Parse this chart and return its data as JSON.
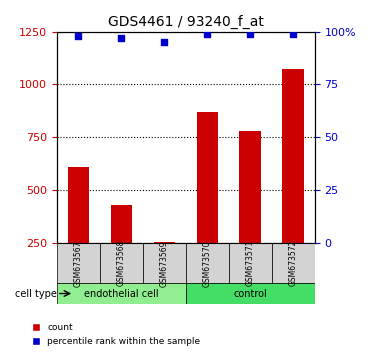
{
  "title": "GDS4461 / 93240_f_at",
  "categories": [
    "GSM673567",
    "GSM673568",
    "GSM673569",
    "GSM673570",
    "GSM673571",
    "GSM673572"
  ],
  "bar_values": [
    610,
    430,
    255,
    870,
    780,
    1075
  ],
  "percentile_values": [
    98,
    97,
    95,
    99,
    99,
    99
  ],
  "bar_color": "#cc0000",
  "dot_color": "#0000cc",
  "left_ylim": [
    250,
    1250
  ],
  "left_yticks": [
    250,
    500,
    750,
    1000,
    1250
  ],
  "right_ylim": [
    0,
    100
  ],
  "right_yticks": [
    0,
    25,
    50,
    75,
    100
  ],
  "right_yticklabels": [
    "0",
    "25",
    "50",
    "75",
    "100%"
  ],
  "cell_types": [
    "endothelial cell",
    "endothelial cell",
    "endothelial cell",
    "control",
    "control",
    "control"
  ],
  "cell_type_colors": {
    "endothelial cell": "#90ee90",
    "control": "#00cc44"
  },
  "cell_type_label": "cell type",
  "legend_items": [
    {
      "label": "count",
      "color": "#cc0000",
      "marker": "s"
    },
    {
      "label": "percentile rank within the sample",
      "color": "#0000cc",
      "marker": "s"
    }
  ],
  "grid_dotted": true,
  "bar_width": 0.5
}
